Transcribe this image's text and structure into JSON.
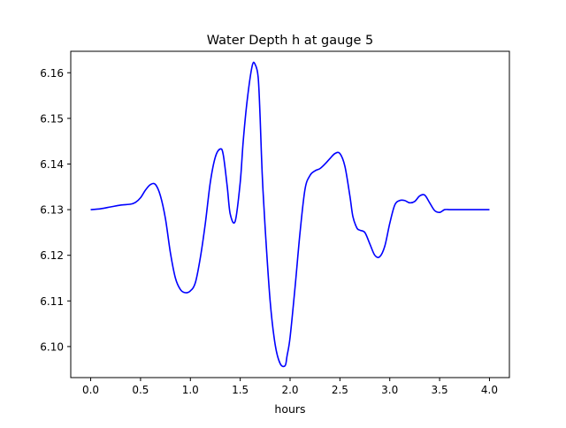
{
  "chart_data": {
    "type": "line",
    "title": "Water Depth h at gauge 5",
    "xlabel": "hours",
    "ylabel": "",
    "xlim": [
      -0.2,
      4.2
    ],
    "ylim": [
      6.0932,
      6.1647
    ],
    "xticks": [
      0.0,
      0.5,
      1.0,
      1.5,
      2.0,
      2.5,
      3.0,
      3.5,
      4.0
    ],
    "xtick_labels": [
      "0.0",
      "0.5",
      "1.0",
      "1.5",
      "2.0",
      "2.5",
      "3.0",
      "3.5",
      "4.0"
    ],
    "yticks": [
      6.1,
      6.11,
      6.12,
      6.13,
      6.14,
      6.15,
      6.16
    ],
    "ytick_labels": [
      "6.10",
      "6.11",
      "6.12",
      "6.13",
      "6.14",
      "6.15",
      "6.16"
    ],
    "grid": false,
    "series": [
      {
        "color": "#0000ff",
        "x": [
          0.0,
          0.1,
          0.2,
          0.3,
          0.4,
          0.45,
          0.5,
          0.55,
          0.6,
          0.65,
          0.7,
          0.75,
          0.8,
          0.85,
          0.9,
          0.95,
          1.0,
          1.05,
          1.1,
          1.15,
          1.2,
          1.25,
          1.3,
          1.33,
          1.37,
          1.4,
          1.45,
          1.5,
          1.53,
          1.57,
          1.62,
          1.65,
          1.68,
          1.7,
          1.72,
          1.75,
          1.8,
          1.85,
          1.9,
          1.95,
          1.97,
          2.0,
          2.05,
          2.1,
          2.15,
          2.2,
          2.25,
          2.3,
          2.35,
          2.4,
          2.45,
          2.5,
          2.55,
          2.6,
          2.63,
          2.67,
          2.7,
          2.75,
          2.8,
          2.85,
          2.9,
          2.95,
          3.0,
          3.05,
          3.1,
          3.15,
          3.2,
          3.25,
          3.3,
          3.35,
          3.4,
          3.45,
          3.5,
          3.55,
          3.6,
          3.65,
          3.7,
          3.75,
          3.8,
          3.85,
          3.9,
          4.0
        ],
        "y": [
          6.13,
          6.1302,
          6.1306,
          6.131,
          6.1312,
          6.1316,
          6.1326,
          6.1343,
          6.1355,
          6.1355,
          6.133,
          6.128,
          6.1205,
          6.115,
          6.1125,
          6.1118,
          6.1122,
          6.114,
          6.1195,
          6.127,
          6.136,
          6.1415,
          6.1433,
          6.142,
          6.135,
          6.129,
          6.1275,
          6.136,
          6.145,
          6.154,
          6.1615,
          6.1618,
          6.159,
          6.15,
          6.138,
          6.126,
          6.11,
          6.1005,
          6.0963,
          6.0958,
          6.098,
          6.102,
          6.113,
          6.125,
          6.1345,
          6.1375,
          6.1385,
          6.139,
          6.14,
          6.1412,
          6.1423,
          6.1423,
          6.1395,
          6.133,
          6.1285,
          6.126,
          6.1255,
          6.125,
          6.1225,
          6.12,
          6.1197,
          6.122,
          6.127,
          6.131,
          6.132,
          6.132,
          6.1315,
          6.1318,
          6.133,
          6.1332,
          6.1315,
          6.1298,
          6.1294,
          6.13,
          6.13,
          6.13,
          6.13,
          6.13,
          6.13,
          6.13,
          6.13,
          6.13
        ]
      }
    ]
  }
}
